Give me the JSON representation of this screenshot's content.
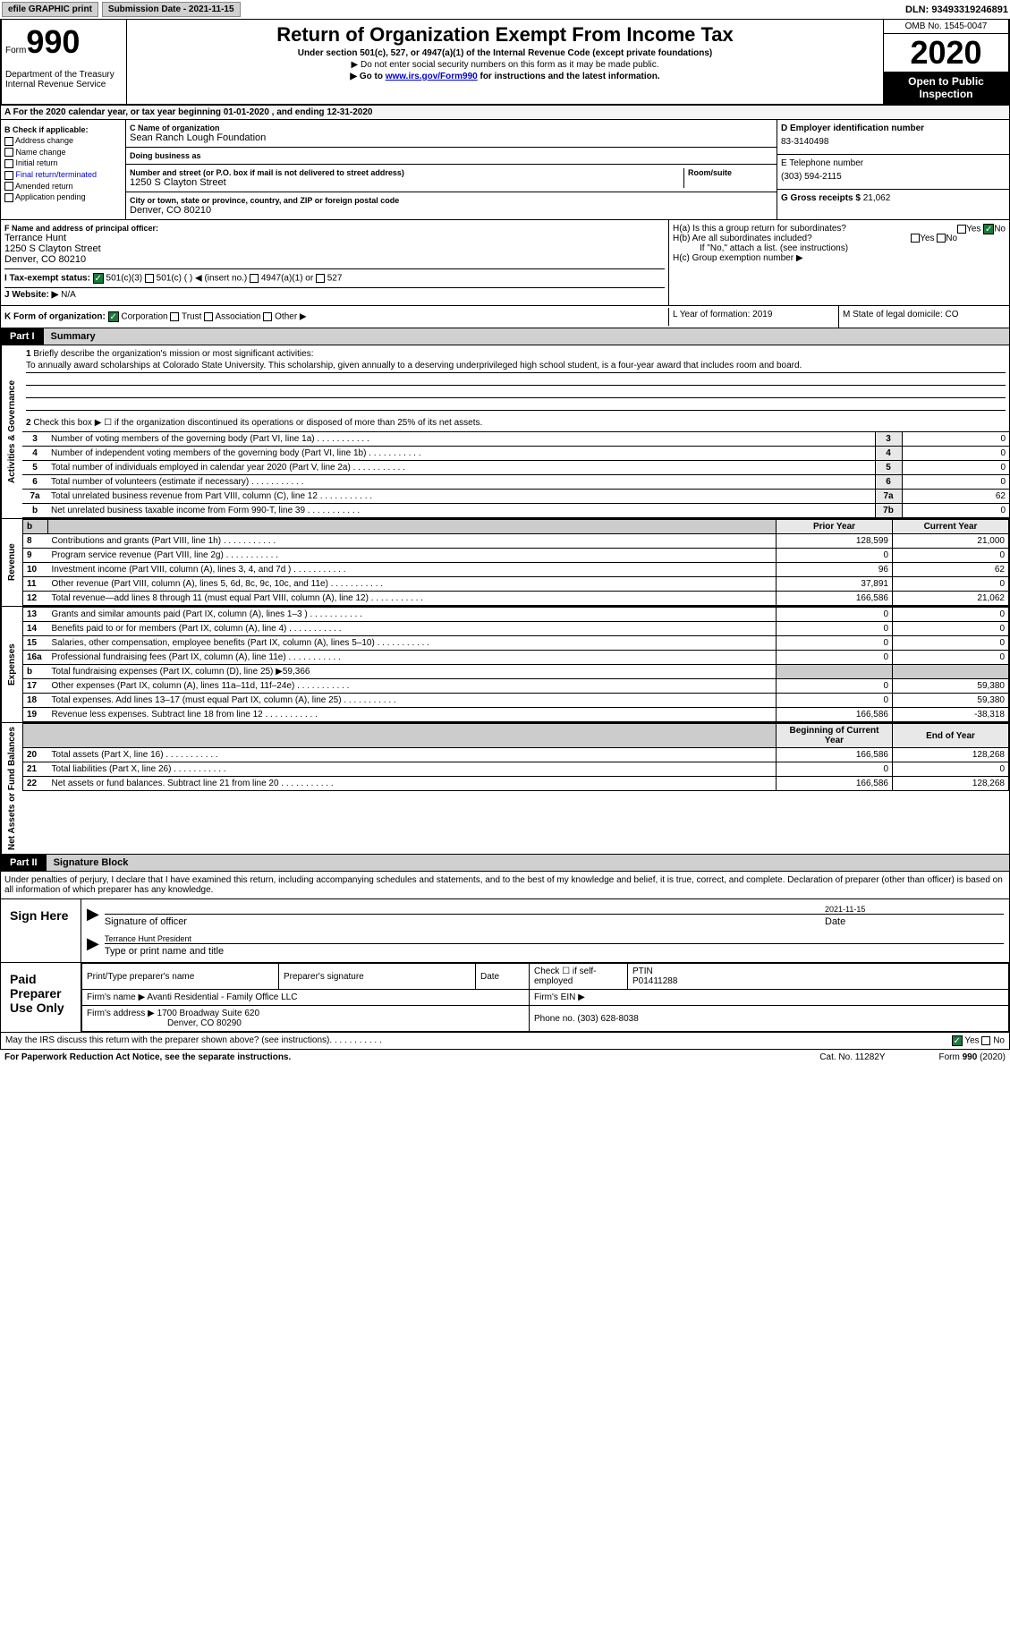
{
  "topbar": {
    "efile": "efile GRAPHIC print",
    "sub_label": "Submission Date - ",
    "sub_date": "2021-11-15",
    "dln_label": "DLN: ",
    "dln": "93493319246891"
  },
  "header": {
    "form_word": "Form",
    "form_num": "990",
    "dept": "Department of the Treasury\nInternal Revenue Service",
    "title": "Return of Organization Exempt From Income Tax",
    "sub1": "Under section 501(c), 527, or 4947(a)(1) of the Internal Revenue Code (except private foundations)",
    "sub2": "▶ Do not enter social security numbers on this form as it may be made public.",
    "sub3_pre": "▶ Go to ",
    "sub3_link": "www.irs.gov/Form990",
    "sub3_post": " for instructions and the latest information.",
    "omb": "OMB No. 1545-0047",
    "year": "2020",
    "inspection": "Open to Public Inspection"
  },
  "row_a": "A For the 2020 calendar year, or tax year beginning 01-01-2020     , and ending 12-31-2020",
  "col_b": {
    "title": "B Check if applicable:",
    "items": [
      "Address change",
      "Name change",
      "Initial return",
      "Final return/terminated",
      "Amended return",
      "Application pending"
    ]
  },
  "col_c": {
    "name_lbl": "C Name of organization",
    "name": "Sean Ranch Lough Foundation",
    "dba_lbl": "Doing business as",
    "dba": "",
    "addr_lbl": "Number and street (or P.O. box if mail is not delivered to street address)",
    "suite_lbl": "Room/suite",
    "addr": "1250 S Clayton Street",
    "city_lbl": "City or town, state or province, country, and ZIP or foreign postal code",
    "city": "Denver, CO  80210"
  },
  "col_d": {
    "ein_lbl": "D Employer identification number",
    "ein": "83-3140498",
    "phone_lbl": "E Telephone number",
    "phone": "(303) 594-2115",
    "receipts_lbl": "G Gross receipts $ ",
    "receipts": "21,062"
  },
  "col_f": {
    "lbl": "F Name and address of principal officer:",
    "name": "Terrance Hunt",
    "addr1": "1250 S Clayton Street",
    "addr2": "Denver, CO  80210"
  },
  "col_h": {
    "ha": "H(a)  Is this a group return for subordinates?",
    "hb": "H(b)  Are all subordinates included?",
    "hb_note": "If \"No,\" attach a list. (see instructions)",
    "hc": "H(c)  Group exemption number ▶",
    "yes": "Yes",
    "no": "No"
  },
  "row_i": {
    "label": "I    Tax-exempt status:",
    "opts": [
      "501(c)(3)",
      "501(c) (  ) ◀ (insert no.)",
      "4947(a)(1) or",
      "527"
    ]
  },
  "row_j": {
    "label": "J   Website: ▶",
    "val": "N/A"
  },
  "row_k": {
    "label": "K Form of organization:",
    "opts": [
      "Corporation",
      "Trust",
      "Association",
      "Other ▶"
    ]
  },
  "row_lm": {
    "l": "L Year of formation: 2019",
    "m": "M State of legal domicile: CO"
  },
  "part1": {
    "tab": "Part I",
    "title": "Summary"
  },
  "mission": {
    "num": "1",
    "label": "Briefly describe the organization's mission or most significant activities:",
    "text": "To annually award scholarships at Colorado State University. This scholarship, given annually to a deserving underprivileged high school student, is a four-year award that includes room and board."
  },
  "line2": "Check this box ▶ ☐  if the organization discontinued its operations or disposed of more than 25% of its net assets.",
  "gov_rows": [
    {
      "n": "3",
      "lbl": "Number of voting members of the governing body (Part VI, line 1a)",
      "box": "3",
      "val": "0"
    },
    {
      "n": "4",
      "lbl": "Number of independent voting members of the governing body (Part VI, line 1b)",
      "box": "4",
      "val": "0"
    },
    {
      "n": "5",
      "lbl": "Total number of individuals employed in calendar year 2020 (Part V, line 2a)",
      "box": "5",
      "val": "0"
    },
    {
      "n": "6",
      "lbl": "Total number of volunteers (estimate if necessary)",
      "box": "6",
      "val": "0"
    },
    {
      "n": "7a",
      "lbl": "Total unrelated business revenue from Part VIII, column (C), line 12",
      "box": "7a",
      "val": "62"
    },
    {
      "n": "b",
      "lbl": "Net unrelated business taxable income from Form 990-T, line 39",
      "box": "7b",
      "val": "0"
    }
  ],
  "fin_headers": {
    "prior": "Prior Year",
    "current": "Current Year",
    "boy": "Beginning of Current Year",
    "eoy": "End of Year"
  },
  "sections": {
    "gov": "Activities & Governance",
    "rev": "Revenue",
    "exp": "Expenses",
    "net": "Net Assets or Fund Balances"
  },
  "revenue": [
    {
      "n": "8",
      "lbl": "Contributions and grants (Part VIII, line 1h)",
      "p": "128,599",
      "c": "21,000"
    },
    {
      "n": "9",
      "lbl": "Program service revenue (Part VIII, line 2g)",
      "p": "0",
      "c": "0"
    },
    {
      "n": "10",
      "lbl": "Investment income (Part VIII, column (A), lines 3, 4, and 7d )",
      "p": "96",
      "c": "62"
    },
    {
      "n": "11",
      "lbl": "Other revenue (Part VIII, column (A), lines 5, 6d, 8c, 9c, 10c, and 11e)",
      "p": "37,891",
      "c": "0"
    },
    {
      "n": "12",
      "lbl": "Total revenue—add lines 8 through 11 (must equal Part VIII, column (A), line 12)",
      "p": "166,586",
      "c": "21,062"
    }
  ],
  "expenses": [
    {
      "n": "13",
      "lbl": "Grants and similar amounts paid (Part IX, column (A), lines 1–3 )",
      "p": "0",
      "c": "0"
    },
    {
      "n": "14",
      "lbl": "Benefits paid to or for members (Part IX, column (A), line 4)",
      "p": "0",
      "c": "0"
    },
    {
      "n": "15",
      "lbl": "Salaries, other compensation, employee benefits (Part IX, column (A), lines 5–10)",
      "p": "0",
      "c": "0"
    },
    {
      "n": "16a",
      "lbl": "Professional fundraising fees (Part IX, column (A), line 11e)",
      "p": "0",
      "c": "0"
    },
    {
      "n": "b",
      "lbl": "Total fundraising expenses (Part IX, column (D), line 25) ▶59,366",
      "p": "",
      "c": "",
      "shaded": true
    },
    {
      "n": "17",
      "lbl": "Other expenses (Part IX, column (A), lines 11a–11d, 11f–24e)",
      "p": "0",
      "c": "59,380"
    },
    {
      "n": "18",
      "lbl": "Total expenses. Add lines 13–17 (must equal Part IX, column (A), line 25)",
      "p": "0",
      "c": "59,380"
    },
    {
      "n": "19",
      "lbl": "Revenue less expenses. Subtract line 18 from line 12",
      "p": "166,586",
      "c": "-38,318"
    }
  ],
  "netassets": [
    {
      "n": "20",
      "lbl": "Total assets (Part X, line 16)",
      "p": "166,586",
      "c": "128,268"
    },
    {
      "n": "21",
      "lbl": "Total liabilities (Part X, line 26)",
      "p": "0",
      "c": "0"
    },
    {
      "n": "22",
      "lbl": "Net assets or fund balances. Subtract line 21 from line 20",
      "p": "166,586",
      "c": "128,268"
    }
  ],
  "part2": {
    "tab": "Part II",
    "title": "Signature Block"
  },
  "sig": {
    "decl": "Under penalties of perjury, I declare that I have examined this return, including accompanying schedules and statements, and to the best of my knowledge and belief, it is true, correct, and complete. Declaration of preparer (other than officer) is based on all information of which preparer has any knowledge.",
    "sign_here": "Sign Here",
    "sig_officer": "Signature of officer",
    "date_lbl": "Date",
    "sig_date": "2021-11-15",
    "officer_name": "Terrance Hunt  President",
    "type_lbl": "Type or print name and title"
  },
  "preparer": {
    "label": "Paid Preparer Use Only",
    "print_name_lbl": "Print/Type preparer's name",
    "print_name": "",
    "sig_lbl": "Preparer's signature",
    "date_lbl": "Date",
    "check_lbl": "Check ☐ if self-employed",
    "ptin_lbl": "PTIN",
    "ptin": "P01411288",
    "firm_name_lbl": "Firm's name    ▶ ",
    "firm_name": "Avanti Residential - Family Office LLC",
    "firm_ein_lbl": "Firm's EIN ▶",
    "firm_addr_lbl": "Firm's address ▶ ",
    "firm_addr1": "1700 Broadway Suite 620",
    "firm_addr2": "Denver, CO  80290",
    "phone_lbl": "Phone no. ",
    "phone": "(303) 628-8038"
  },
  "discuss": {
    "q": "May the IRS discuss this return with the preparer shown above? (see instructions)",
    "yes": "Yes",
    "no": "No"
  },
  "footer": {
    "left": "For Paperwork Reduction Act Notice, see the separate instructions.",
    "mid": "Cat. No. 11282Y",
    "right": "Form 990 (2020)"
  }
}
